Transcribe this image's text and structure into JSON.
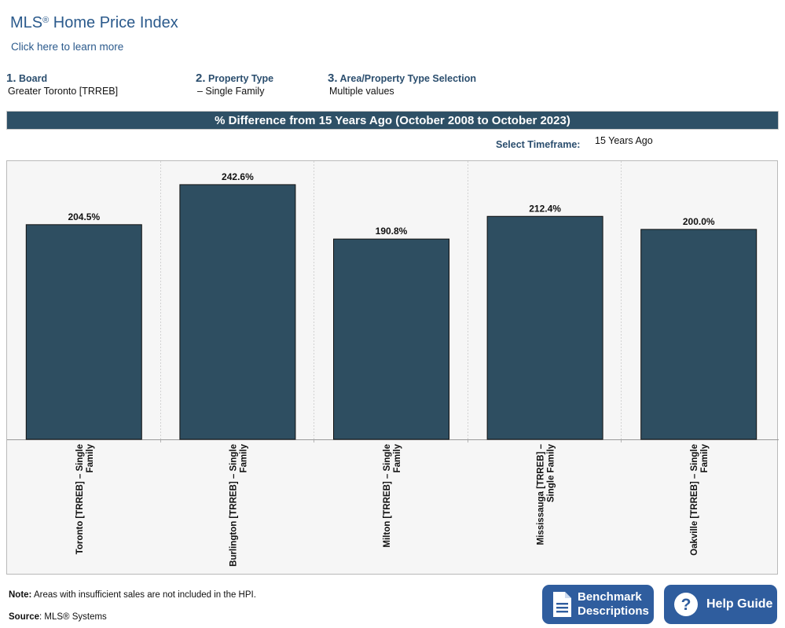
{
  "header": {
    "title": "MLS",
    "title_mark": "®",
    "title_rest": " Home Price Index",
    "learn_more": "Click here to learn more"
  },
  "filters": {
    "board": {
      "number": "1.",
      "label": "Board",
      "value": "Greater Toronto [TRREB]"
    },
    "property_type": {
      "number": "2.",
      "label": "Property Type",
      "value": "– Single Family"
    },
    "area": {
      "number": "3.",
      "label": "Area/Property Type Selection",
      "value": "Multiple values"
    }
  },
  "banner": "% Difference from 15 Years Ago (October 2008 to October 2023)",
  "timeframe": {
    "label": "Select Timeframe:",
    "value": "15 Years Ago"
  },
  "chart_data": {
    "type": "bar",
    "categories": [
      [
        "Toronto [TRREB] – Single",
        "Family"
      ],
      [
        "Burlington [TRREB] – Single",
        "Family"
      ],
      [
        "Milton [TRREB] – Single",
        "Family"
      ],
      [
        "Mississauga [TRREB] –",
        "Single Family"
      ],
      [
        "Oakville [TRREB] – Single",
        "Family"
      ]
    ],
    "values": [
      204.5,
      242.6,
      190.8,
      212.4,
      200.0
    ],
    "value_labels": [
      "204.5%",
      "242.6%",
      "190.8%",
      "212.4%",
      "200.0%"
    ],
    "ylim": [
      0,
      265
    ],
    "bar_color": "#2e4e61",
    "background": "#f6f6f6",
    "grid": "vertical dotted separators"
  },
  "footer": {
    "note_label": "Note:",
    "note_text": " Areas with insufficient sales are not included in the HPI.",
    "source_label": "Source",
    "source_text": ": MLS® Systems"
  },
  "buttons": {
    "benchmark_line1": "Benchmark",
    "benchmark_line2": "Descriptions",
    "help": "Help Guide",
    "color": "#2f5d9e"
  }
}
